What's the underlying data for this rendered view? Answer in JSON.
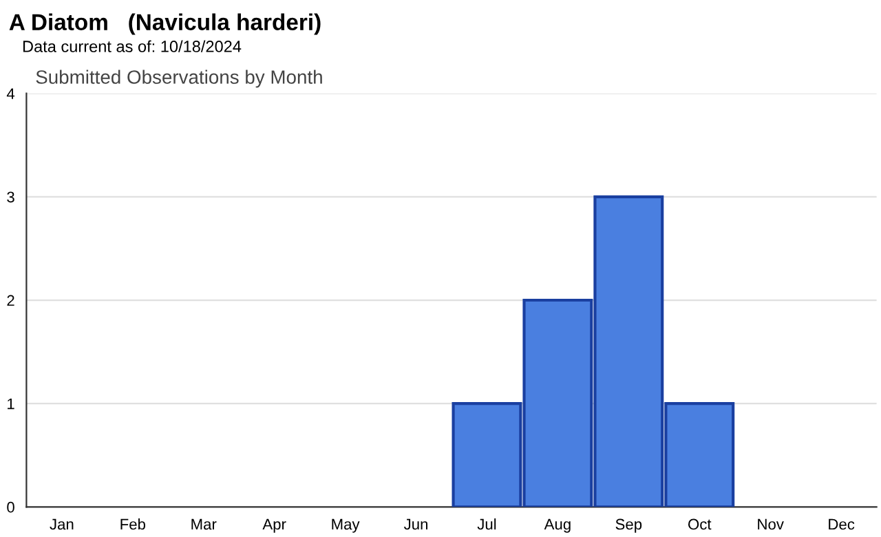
{
  "chart_data": {
    "type": "bar",
    "title": "A Diatom   (Navicula harderi)",
    "subtitle": "Data current as of: 10/18/2024",
    "annotations": [
      "Submitted Observations by Month"
    ],
    "categories": [
      "Jan",
      "Feb",
      "Mar",
      "Apr",
      "May",
      "Jun",
      "Jul",
      "Aug",
      "Sep",
      "Oct",
      "Nov",
      "Dec"
    ],
    "values": [
      0,
      0,
      0,
      0,
      0,
      0,
      1,
      2,
      3,
      1,
      0,
      0
    ],
    "color": "#4a7fe0",
    "ylim": [
      0,
      4
    ],
    "yticks": [
      0,
      1,
      2,
      3,
      4
    ],
    "grid": "y",
    "legend": false
  }
}
